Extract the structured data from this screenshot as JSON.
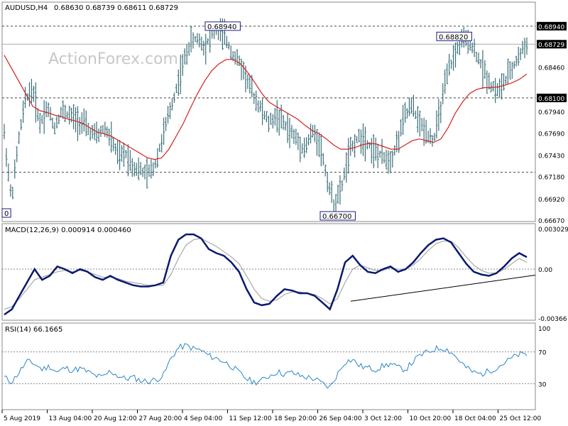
{
  "header": {
    "symbol_label": "AUDUSD,H4",
    "ohlc_values": "0.68630 0.68739 0.68611 0.68729"
  },
  "watermark": "ActionForex.com",
  "colors": {
    "price_bars": "#3b6f78",
    "moving_average": "#d42020",
    "macd_line": "#0a1a6e",
    "signal_line": "#9a9a9a",
    "rsi_line": "#2a86c8",
    "annotation_border": "#1a1a8a",
    "label_bg": "#000000",
    "label_text": "#ffffff"
  },
  "chart_data": [
    {
      "type": "bar",
      "title": "AUDUSD,H4",
      "ylim": [
        0.6667,
        0.6908
      ],
      "y_ticks": [
        "0.68940",
        "0.68729",
        "0.68460",
        "0.68100",
        "0.67940",
        "0.67690",
        "0.67430",
        "0.67180",
        "0.66920",
        "0.66670"
      ],
      "highlighted_ticks": [
        "0.68940",
        "0.68729",
        "0.68100",
        "0.67230"
      ],
      "horizontal_levels": [
        0.6894,
        0.681,
        0.6723
      ],
      "annotations": [
        {
          "text": "0.68940",
          "value": 0.6894
        },
        {
          "text": "0.68820",
          "value": 0.6882
        },
        {
          "text": "0.66700",
          "value": 0.667
        },
        {
          "text": "0",
          "value": 0.6675
        }
      ],
      "x_tick_labels": [
        "5 Aug 2019",
        "13 Aug 04:00",
        "20 Aug 12:00",
        "27 Aug 20:00",
        "4 Sep 04:00",
        "11 Sep 12:00",
        "18 Sep 20:00",
        "26 Sep 04:00",
        "3 Oct 12:00",
        "10 Oct 20:00",
        "18 Oct 04:00",
        "25 Oct 12:00"
      ],
      "price_path": [
        0.6768,
        0.669,
        0.676,
        0.681,
        0.682,
        0.678,
        0.68,
        0.6775,
        0.6795,
        0.679,
        0.6785,
        0.678,
        0.677,
        0.6765,
        0.6775,
        0.676,
        0.674,
        0.6745,
        0.673,
        0.6725,
        0.672,
        0.673,
        0.676,
        0.679,
        0.682,
        0.685,
        0.6875,
        0.688,
        0.687,
        0.6885,
        0.689,
        0.6878,
        0.686,
        0.685,
        0.683,
        0.681,
        0.6795,
        0.678,
        0.679,
        0.678,
        0.677,
        0.676,
        0.675,
        0.677,
        0.676,
        0.672,
        0.6685,
        0.67,
        0.674,
        0.676,
        0.6765,
        0.6755,
        0.6745,
        0.674,
        0.6738,
        0.676,
        0.679,
        0.68,
        0.678,
        0.677,
        0.676,
        0.68,
        0.684,
        0.6862,
        0.6878,
        0.6875,
        0.686,
        0.6842,
        0.6825,
        0.6818,
        0.683,
        0.6845,
        0.686,
        0.6875
      ],
      "moving_average": [
        0.686,
        0.6845,
        0.683,
        0.6815,
        0.68,
        0.6795,
        0.6793,
        0.679,
        0.6788,
        0.6785,
        0.6783,
        0.678,
        0.6775,
        0.677,
        0.6768,
        0.6765,
        0.676,
        0.6755,
        0.675,
        0.6745,
        0.674,
        0.6738,
        0.674,
        0.675,
        0.6765,
        0.678,
        0.6798,
        0.6815,
        0.683,
        0.6842,
        0.685,
        0.6855,
        0.6855,
        0.685,
        0.684,
        0.6828,
        0.6815,
        0.6805,
        0.68,
        0.6795,
        0.679,
        0.6785,
        0.6778,
        0.6772,
        0.6768,
        0.6762,
        0.6755,
        0.675,
        0.675,
        0.6752,
        0.6755,
        0.6757,
        0.6756,
        0.6753,
        0.675,
        0.675,
        0.6755,
        0.676,
        0.6762,
        0.676,
        0.6758,
        0.6762,
        0.6775,
        0.6792,
        0.6805,
        0.6815,
        0.682,
        0.6822,
        0.6822,
        0.6823,
        0.6825,
        0.6828,
        0.6832,
        0.6838
      ]
    },
    {
      "type": "line",
      "title": "MACD(12,26,9) 0.000914 0.000460",
      "ylim": [
        -0.00366,
        0.003029
      ],
      "y_ticks": [
        "0.003029",
        "0.00",
        "-0.00366"
      ],
      "series": [
        {
          "values": [
            -0.0034,
            -0.003,
            -0.002,
            -0.001,
            0.0,
            -0.0008,
            -0.0005,
            0.0002,
            0.0,
            -0.0003,
            0.0,
            -0.0002,
            -0.0006,
            -0.0008,
            -0.0005,
            -0.0008,
            -0.001,
            -0.0012,
            -0.0013,
            -0.0013,
            -0.0012,
            -0.001,
            0.001,
            0.0022,
            0.0026,
            0.0026,
            0.0023,
            0.0015,
            0.0012,
            0.001,
            0.0005,
            -0.0002,
            -0.0015,
            -0.0025,
            -0.0027,
            -0.0026,
            -0.002,
            -0.0015,
            -0.0016,
            -0.0018,
            -0.0018,
            -0.002,
            -0.0025,
            -0.003,
            -0.0015,
            0.0005,
            0.001,
            0.0003,
            -0.0002,
            -0.0003,
            0.0,
            0.0002,
            -0.0002,
            0.0,
            0.0005,
            0.0012,
            0.0018,
            0.0022,
            0.0023,
            0.002,
            0.0012,
            0.0004,
            -0.0002,
            -0.0004,
            -0.0005,
            -0.0003,
            0.0002,
            0.0008,
            0.0012,
            0.0009
          ]
        },
        {
          "values": [
            -0.003,
            -0.0028,
            -0.0022,
            -0.0015,
            -0.0008,
            -0.0006,
            -0.0004,
            -0.0002,
            -0.0001,
            -0.0002,
            -0.0001,
            -0.0002,
            -0.0004,
            -0.0006,
            -0.0006,
            -0.0007,
            -0.0009,
            -0.001,
            -0.0011,
            -0.0012,
            -0.0012,
            -0.0012,
            -0.0004,
            0.0008,
            0.0018,
            0.0022,
            0.0023,
            0.002,
            0.0017,
            0.0013,
            0.0009,
            0.0004,
            -0.0005,
            -0.0015,
            -0.0022,
            -0.0024,
            -0.0023,
            -0.0019,
            -0.0017,
            -0.0017,
            -0.0018,
            -0.0019,
            -0.0022,
            -0.0026,
            -0.0022,
            -0.001,
            0.0,
            0.0003,
            0.0001,
            -0.0001,
            -0.0001,
            0.0001,
            0.0,
            0.0,
            0.0003,
            0.0008,
            0.0014,
            0.0019,
            0.0021,
            0.0021,
            0.0016,
            0.0009,
            0.0003,
            -0.0001,
            -0.0003,
            -0.0003,
            0.0,
            0.0004,
            0.0008,
            0.0005
          ]
        }
      ]
    },
    {
      "type": "line",
      "title": "RSI(14) 66.1665",
      "ylim": [
        0,
        100
      ],
      "y_ticks": [
        "100",
        "70",
        "30",
        "0"
      ],
      "levels": [
        70,
        30
      ],
      "series": [
        {
          "values": [
            38,
            32,
            45,
            58,
            55,
            48,
            52,
            44,
            50,
            47,
            49,
            45,
            40,
            38,
            46,
            40,
            36,
            38,
            34,
            33,
            35,
            40,
            62,
            75,
            78,
            74,
            72,
            65,
            62,
            58,
            52,
            44,
            36,
            32,
            34,
            40,
            45,
            42,
            44,
            40,
            38,
            36,
            30,
            25,
            42,
            58,
            60,
            52,
            50,
            48,
            52,
            55,
            50,
            48,
            58,
            66,
            70,
            74,
            75,
            70,
            60,
            50,
            44,
            42,
            46,
            50,
            56,
            62,
            67,
            66
          ]
        }
      ]
    }
  ]
}
